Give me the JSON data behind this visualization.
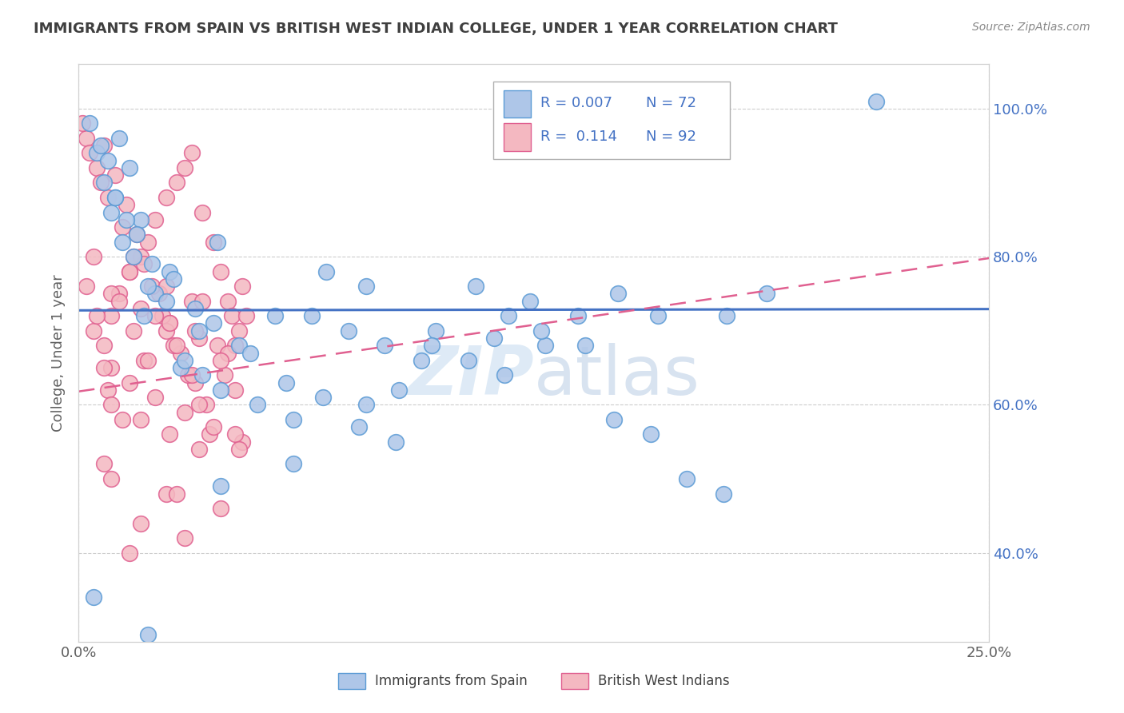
{
  "title": "IMMIGRANTS FROM SPAIN VS BRITISH WEST INDIAN COLLEGE, UNDER 1 YEAR CORRELATION CHART",
  "source": "Source: ZipAtlas.com",
  "ylabel": "College, Under 1 year",
  "xlim": [
    0.0,
    0.25
  ],
  "ylim": [
    0.28,
    1.06
  ],
  "ytick_values": [
    0.4,
    0.6,
    0.8,
    1.0
  ],
  "ytick_labels": [
    "40.0%",
    "60.0%",
    "80.0%",
    "100.0%"
  ],
  "xtick_values": [
    0.0,
    0.25
  ],
  "xtick_labels": [
    "0.0%",
    "25.0%"
  ],
  "spain_dot_color": "#aec6e8",
  "spain_edge_color": "#5b9bd5",
  "bwi_dot_color": "#f4b8c1",
  "bwi_edge_color": "#e06090",
  "spain_line_color": "#4472c4",
  "bwi_line_color": "#e06090",
  "watermark_color": "#c8ddf0",
  "background_color": "#ffffff",
  "grid_color": "#c0c0c0",
  "title_color": "#3f3f3f",
  "ylabel_color": "#606060",
  "ytick_color": "#4472c4",
  "xtick_color": "#606060",
  "legend_r_color": "#4472c4",
  "legend_n_color": "#4472c4",
  "spain_x": [
    0.018,
    0.025,
    0.038,
    0.01,
    0.014,
    0.011,
    0.017,
    0.021,
    0.028,
    0.033,
    0.044,
    0.054,
    0.068,
    0.079,
    0.088,
    0.098,
    0.118,
    0.128,
    0.148,
    0.178,
    0.005,
    0.007,
    0.009,
    0.012,
    0.015,
    0.019,
    0.024,
    0.029,
    0.034,
    0.039,
    0.049,
    0.059,
    0.064,
    0.074,
    0.084,
    0.094,
    0.109,
    0.124,
    0.139,
    0.159,
    0.003,
    0.006,
    0.008,
    0.01,
    0.013,
    0.016,
    0.02,
    0.026,
    0.032,
    0.037,
    0.047,
    0.057,
    0.067,
    0.077,
    0.087,
    0.097,
    0.107,
    0.117,
    0.127,
    0.137,
    0.147,
    0.157,
    0.167,
    0.177,
    0.004,
    0.019,
    0.039,
    0.059,
    0.079,
    0.219,
    0.114,
    0.189
  ],
  "spain_y": [
    0.72,
    0.78,
    0.82,
    0.88,
    0.92,
    0.96,
    0.85,
    0.75,
    0.65,
    0.7,
    0.68,
    0.72,
    0.78,
    0.6,
    0.62,
    0.7,
    0.72,
    0.68,
    0.75,
    0.72,
    0.94,
    0.9,
    0.86,
    0.82,
    0.8,
    0.76,
    0.74,
    0.66,
    0.64,
    0.62,
    0.6,
    0.58,
    0.72,
    0.7,
    0.68,
    0.66,
    0.76,
    0.74,
    0.68,
    0.72,
    0.98,
    0.95,
    0.93,
    0.88,
    0.85,
    0.83,
    0.79,
    0.77,
    0.73,
    0.71,
    0.67,
    0.63,
    0.61,
    0.57,
    0.55,
    0.68,
    0.66,
    0.64,
    0.7,
    0.72,
    0.58,
    0.56,
    0.5,
    0.48,
    0.34,
    0.29,
    0.49,
    0.52,
    0.76,
    1.01,
    0.69,
    0.75
  ],
  "bwi_x": [
    0.004,
    0.009,
    0.011,
    0.014,
    0.017,
    0.019,
    0.021,
    0.024,
    0.027,
    0.029,
    0.031,
    0.034,
    0.037,
    0.039,
    0.041,
    0.044,
    0.007,
    0.01,
    0.013,
    0.016,
    0.018,
    0.022,
    0.025,
    0.028,
    0.032,
    0.035,
    0.038,
    0.042,
    0.045,
    0.002,
    0.005,
    0.008,
    0.012,
    0.015,
    0.02,
    0.023,
    0.026,
    0.03,
    0.033,
    0.036,
    0.04,
    0.043,
    0.046,
    0.001,
    0.003,
    0.006,
    0.008,
    0.012,
    0.018,
    0.024,
    0.031,
    0.009,
    0.014,
    0.021,
    0.029,
    0.037,
    0.045,
    0.009,
    0.017,
    0.025,
    0.033,
    0.041,
    0.009,
    0.017,
    0.025,
    0.033,
    0.004,
    0.014,
    0.024,
    0.034,
    0.007,
    0.019,
    0.031,
    0.043,
    0.005,
    0.015,
    0.027,
    0.039,
    0.002,
    0.011,
    0.021,
    0.032,
    0.009,
    0.024,
    0.039,
    0.017,
    0.029,
    0.043,
    0.007,
    0.027,
    0.044,
    0.014,
    0.007
  ],
  "bwi_y": [
    0.7,
    0.72,
    0.75,
    0.78,
    0.8,
    0.82,
    0.85,
    0.88,
    0.9,
    0.92,
    0.94,
    0.86,
    0.82,
    0.78,
    0.74,
    0.7,
    0.95,
    0.91,
    0.87,
    0.83,
    0.79,
    0.75,
    0.71,
    0.67,
    0.63,
    0.6,
    0.68,
    0.72,
    0.76,
    0.96,
    0.92,
    0.88,
    0.84,
    0.8,
    0.76,
    0.72,
    0.68,
    0.64,
    0.6,
    0.56,
    0.64,
    0.68,
    0.72,
    0.98,
    0.94,
    0.9,
    0.62,
    0.58,
    0.66,
    0.7,
    0.74,
    0.65,
    0.63,
    0.61,
    0.59,
    0.57,
    0.55,
    0.75,
    0.73,
    0.71,
    0.69,
    0.67,
    0.6,
    0.58,
    0.56,
    0.54,
    0.8,
    0.78,
    0.76,
    0.74,
    0.68,
    0.66,
    0.64,
    0.62,
    0.72,
    0.7,
    0.68,
    0.66,
    0.76,
    0.74,
    0.72,
    0.7,
    0.5,
    0.48,
    0.46,
    0.44,
    0.42,
    0.56,
    0.52,
    0.48,
    0.54,
    0.4,
    0.65
  ],
  "spain_line_intercept": 0.7275,
  "spain_line_slope": 0.007,
  "bwi_line_intercept": 0.618,
  "bwi_line_slope": 0.72
}
